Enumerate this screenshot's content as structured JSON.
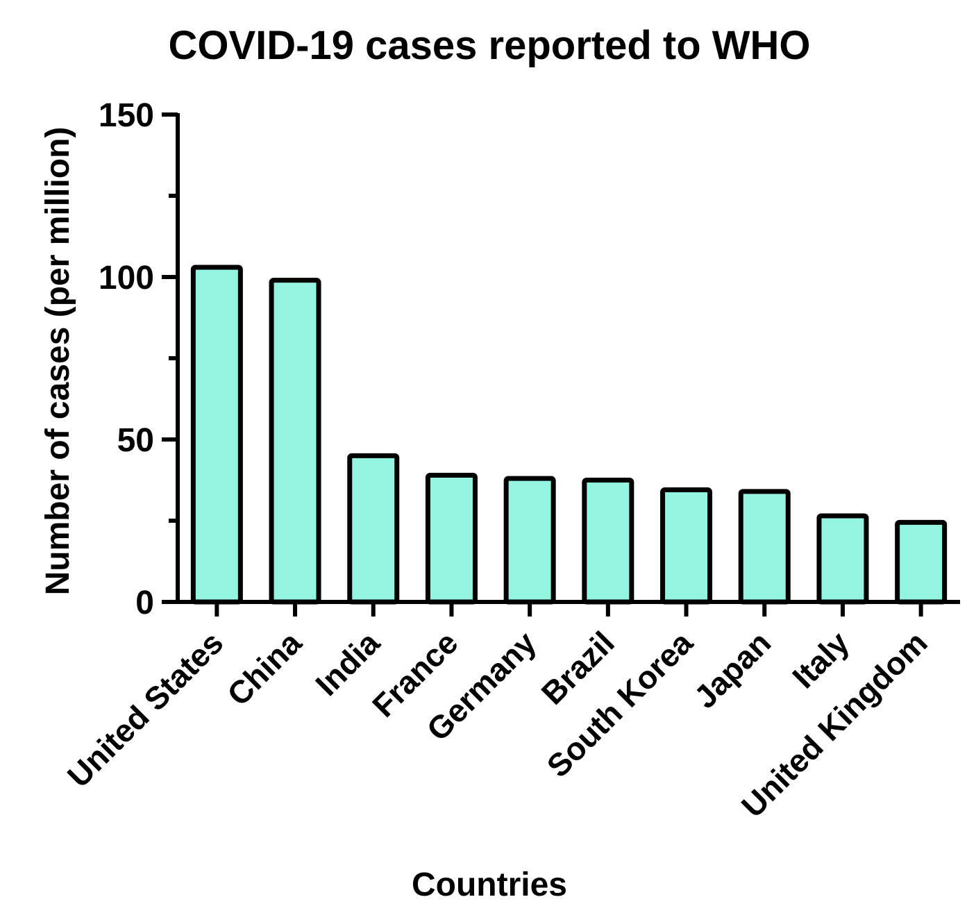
{
  "chart_data": {
    "type": "bar",
    "title": "COVID-19 cases reported to WHO",
    "xlabel": "Countries",
    "ylabel": "Number of cases (per million)",
    "ylim": [
      0,
      150
    ],
    "major_ticks": [
      0,
      50,
      100,
      150
    ],
    "minor_ticks": [
      25,
      75,
      125
    ],
    "grid": false,
    "categories": [
      "United States",
      "China",
      "India",
      "France",
      "Germany",
      "Brazil",
      "South Korea",
      "Japan",
      "Italy",
      "United Kingdom"
    ],
    "values": [
      103,
      99,
      45,
      39,
      38,
      37.5,
      34.5,
      34,
      26.5,
      24.5
    ]
  },
  "colors": {
    "bar_fill": "#93f5df",
    "bar_stroke": "#000000",
    "axis": "#000000"
  }
}
